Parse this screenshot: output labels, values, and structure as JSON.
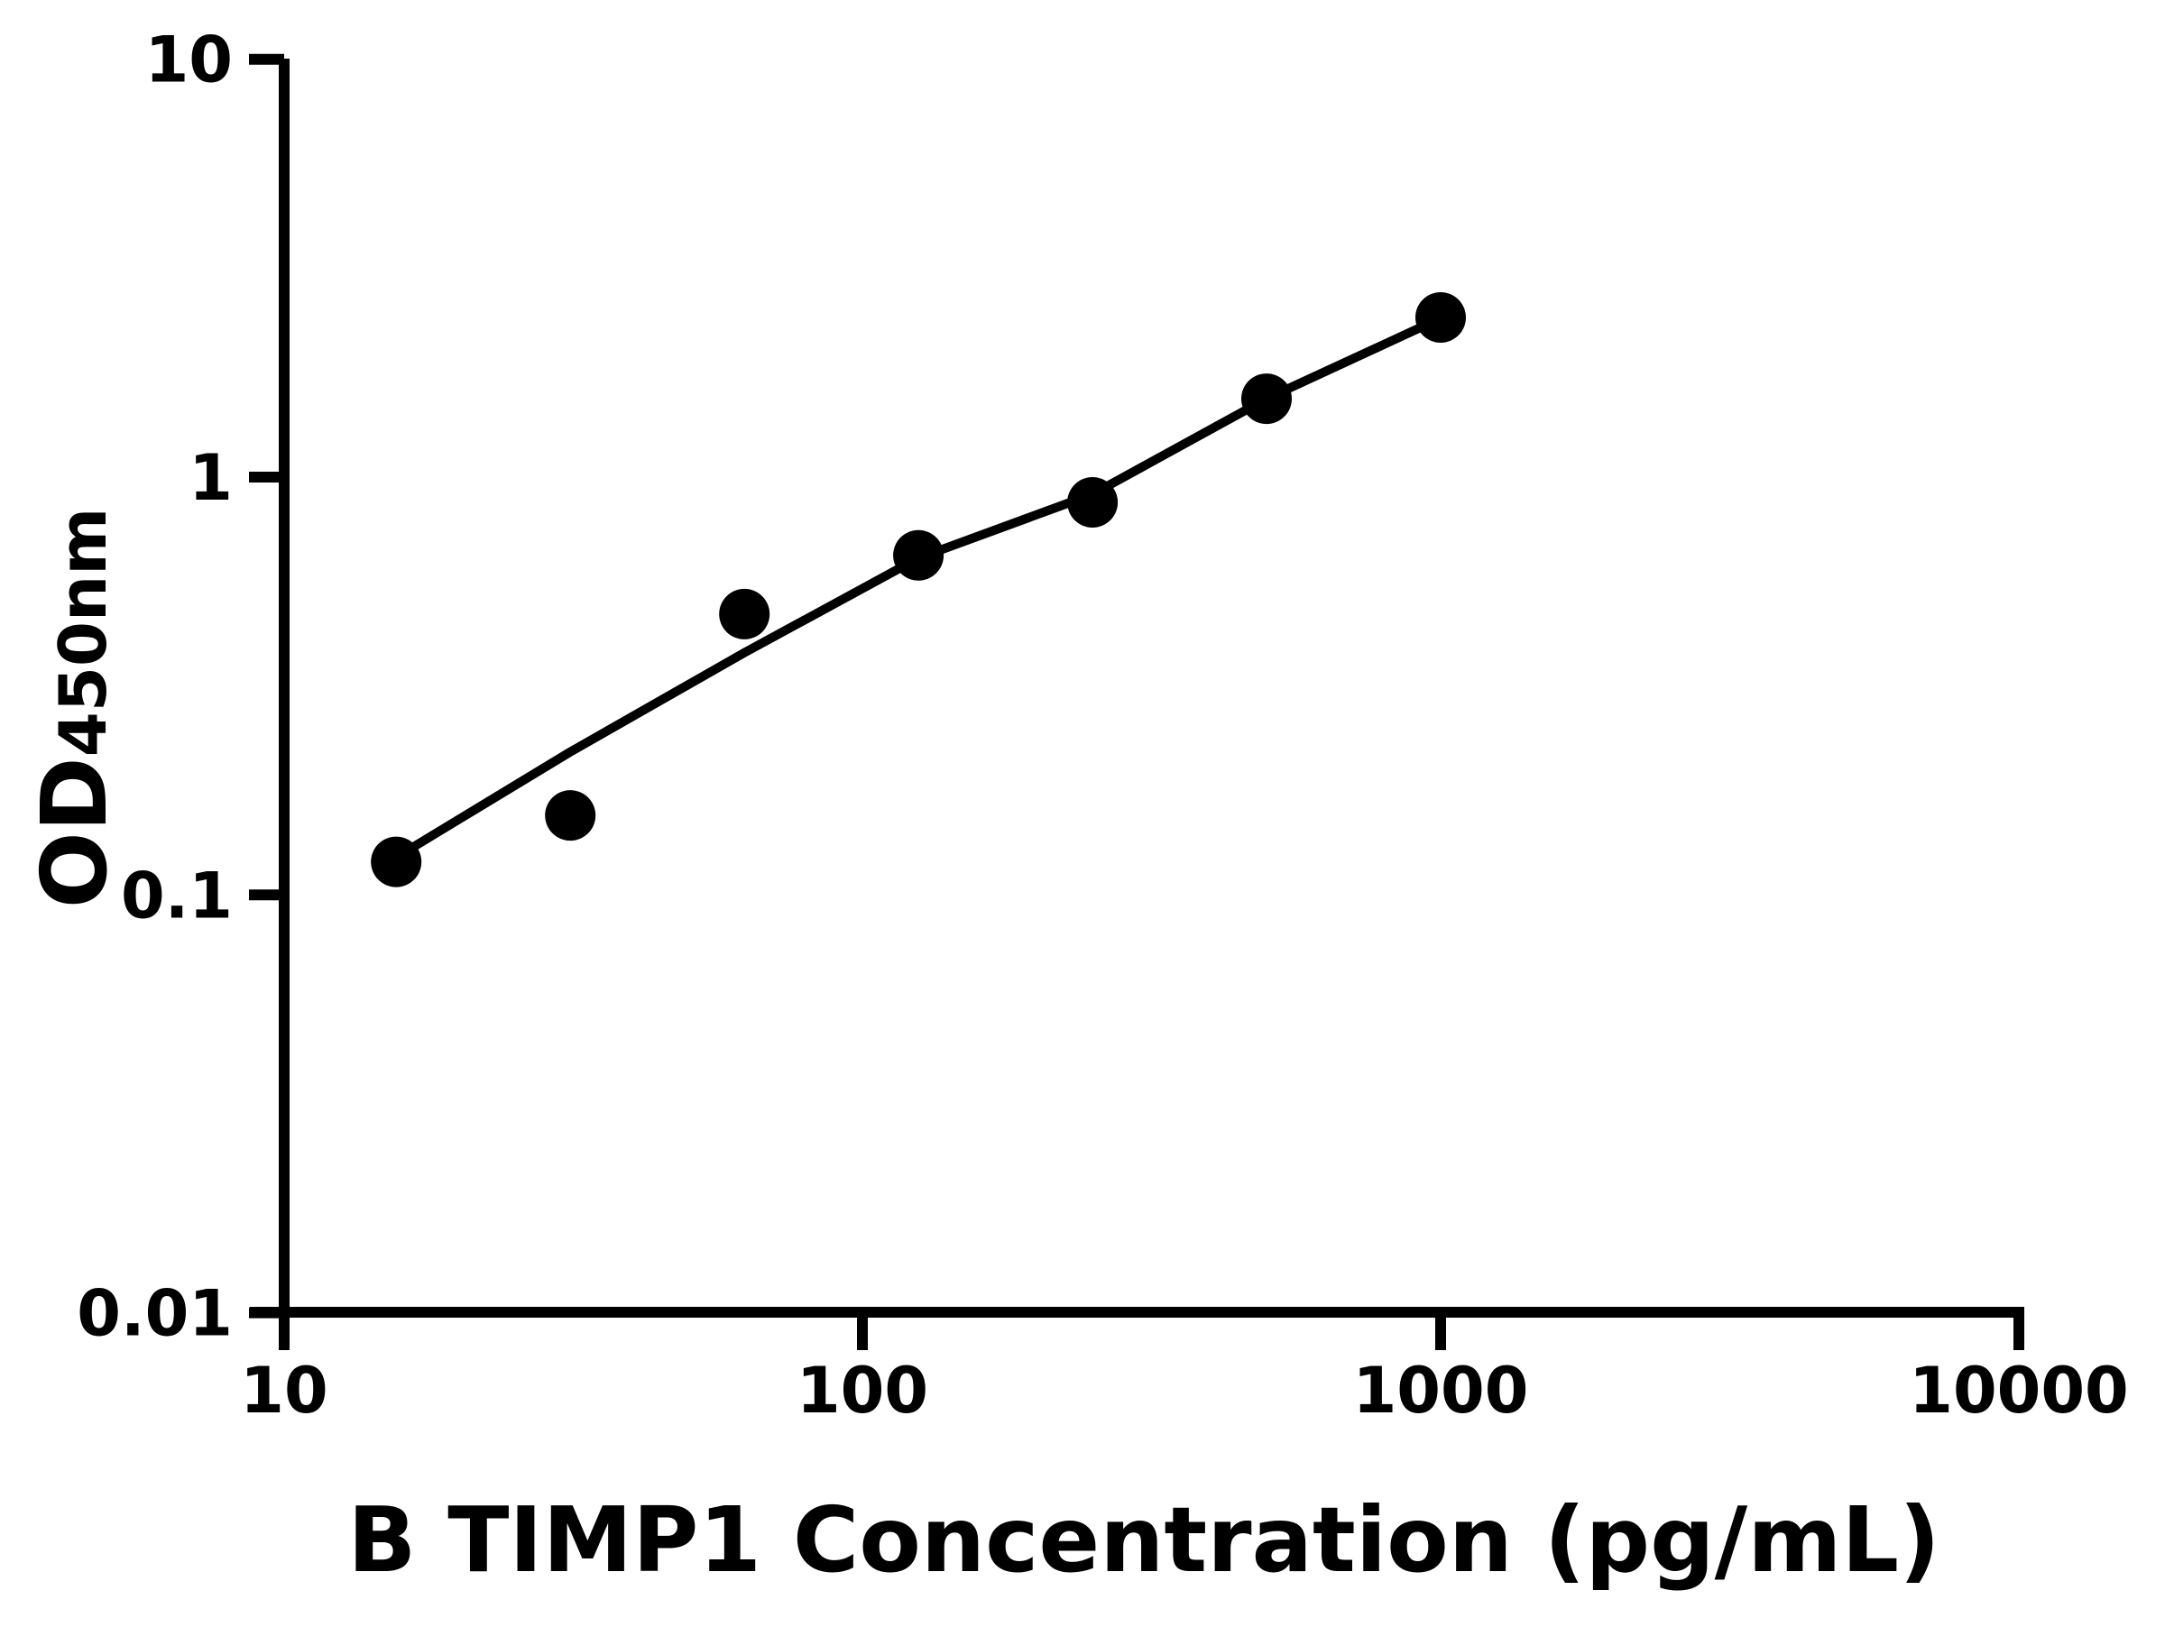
{
  "figure": {
    "background_color": "#ffffff",
    "ink_color": "#000000"
  },
  "chart_data": {
    "type": "scatter",
    "title": "",
    "xlabel": "B TIMP1 Concentration (pg/mL)",
    "ylabel_main": "OD",
    "ylabel_sub": "450nm",
    "x_scale": "log",
    "y_scale": "log",
    "xlim": [
      10,
      10000
    ],
    "ylim": [
      0.01,
      10
    ],
    "grid": false,
    "legend": false,
    "x_ticks": [
      {
        "value": 10,
        "label": "10"
      },
      {
        "value": 100,
        "label": "100"
      },
      {
        "value": 1000,
        "label": "1000"
      },
      {
        "value": 10000,
        "label": "10000"
      }
    ],
    "y_ticks": [
      {
        "value": 10,
        "label": "10"
      },
      {
        "value": 1,
        "label": "1"
      },
      {
        "value": 0.1,
        "label": "0.1"
      },
      {
        "value": 0.01,
        "label": "0.01"
      }
    ],
    "series": [
      {
        "name": "standard-points",
        "type": "points",
        "x": [
          15.625,
          31.25,
          62.5,
          125,
          250,
          500,
          1000
        ],
        "y": [
          0.12,
          0.155,
          0.47,
          0.65,
          0.87,
          1.54,
          2.41
        ]
      },
      {
        "name": "fit-curve",
        "type": "line",
        "x": [
          15.625,
          31.25,
          62.5,
          125,
          250,
          500,
          1000
        ],
        "y": [
          0.123,
          0.22,
          0.38,
          0.64,
          0.91,
          1.54,
          2.4
        ]
      }
    ],
    "marker": {
      "radius": 28,
      "color": "#000000"
    },
    "line": {
      "width": 10,
      "color": "#000000"
    },
    "axis": {
      "stroke_width": 12,
      "tick_length": 40,
      "color": "#000000"
    }
  }
}
